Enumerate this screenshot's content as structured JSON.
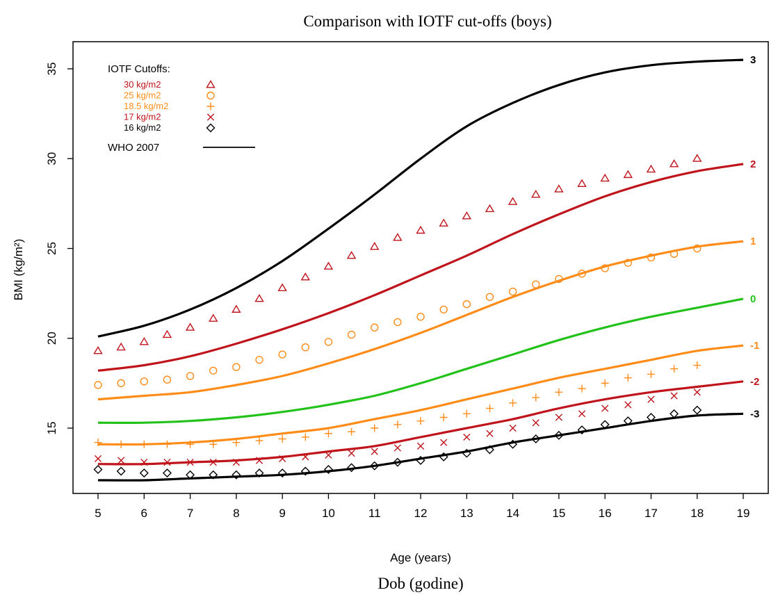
{
  "chart_data": {
    "type": "line",
    "title": "Comparison with IOTF cut-offs (boys)",
    "xlabel": "Age (years)",
    "xlabel_secondary": "Dob (godine)",
    "ylabel": "BMI (kg/m²)",
    "xlim": [
      5,
      19
    ],
    "ylim": [
      11.5,
      36.5
    ],
    "x_ticks": [
      "5",
      "6",
      "7",
      "8",
      "9",
      "10",
      "11",
      "12",
      "13",
      "14",
      "15",
      "16",
      "17",
      "18",
      "19"
    ],
    "y_ticks": [
      "15",
      "20",
      "25",
      "30",
      "35"
    ],
    "grid": false,
    "legend": {
      "title": "IOTF Cutoffs:",
      "position": "top-left",
      "who_label": "WHO 2007"
    },
    "who_ages": [
      5,
      6,
      7,
      8,
      9,
      10,
      11,
      12,
      13,
      14,
      15,
      16,
      17,
      18,
      19
    ],
    "who_curves": [
      {
        "label": "3",
        "color": "#000000",
        "values": [
          20.1,
          20.7,
          21.6,
          22.8,
          24.3,
          26.1,
          28.0,
          30.0,
          31.8,
          33.1,
          34.1,
          34.8,
          35.2,
          35.4,
          35.5
        ]
      },
      {
        "label": "2",
        "color": "#c0141c",
        "values": [
          18.2,
          18.5,
          19.0,
          19.7,
          20.5,
          21.4,
          22.4,
          23.5,
          24.6,
          25.8,
          26.9,
          27.9,
          28.7,
          29.3,
          29.7
        ]
      },
      {
        "label": "1",
        "color": "#ff8c19",
        "values": [
          16.6,
          16.8,
          17.0,
          17.4,
          17.9,
          18.6,
          19.4,
          20.3,
          21.3,
          22.3,
          23.2,
          24.0,
          24.6,
          25.1,
          25.4
        ]
      },
      {
        "label": "0",
        "color": "#22c21a",
        "values": [
          15.3,
          15.3,
          15.4,
          15.6,
          15.9,
          16.3,
          16.8,
          17.5,
          18.3,
          19.1,
          19.9,
          20.6,
          21.2,
          21.7,
          22.2
        ]
      },
      {
        "label": "-1",
        "color": "#ff8c19",
        "values": [
          14.1,
          14.1,
          14.2,
          14.4,
          14.7,
          15.0,
          15.5,
          16.0,
          16.6,
          17.2,
          17.8,
          18.3,
          18.8,
          19.3,
          19.6
        ]
      },
      {
        "label": "-2",
        "color": "#c0141c",
        "values": [
          13.0,
          13.0,
          13.1,
          13.2,
          13.4,
          13.7,
          14.0,
          14.5,
          15.0,
          15.5,
          16.1,
          16.6,
          17.0,
          17.3,
          17.6
        ]
      },
      {
        "label": "-3",
        "color": "#000000",
        "values": [
          12.1,
          12.1,
          12.2,
          12.3,
          12.4,
          12.6,
          12.9,
          13.3,
          13.7,
          14.2,
          14.6,
          15.0,
          15.4,
          15.7,
          15.8
        ]
      }
    ],
    "iotf_ages": [
      5,
      5.5,
      6,
      6.5,
      7,
      7.5,
      8,
      8.5,
      9,
      9.5,
      10,
      10.5,
      11,
      11.5,
      12,
      12.5,
      13,
      13.5,
      14,
      14.5,
      15,
      15.5,
      16,
      16.5,
      17,
      17.5,
      18
    ],
    "iotf_series": [
      {
        "name": "30 kg/m2",
        "color": "#c0141c",
        "marker": "triangle",
        "values": [
          19.3,
          19.5,
          19.8,
          20.2,
          20.6,
          21.1,
          21.6,
          22.2,
          22.8,
          23.4,
          24.0,
          24.6,
          25.1,
          25.6,
          26.0,
          26.4,
          26.8,
          27.2,
          27.6,
          28.0,
          28.3,
          28.6,
          28.9,
          29.1,
          29.4,
          29.7,
          30.0
        ]
      },
      {
        "name": "25 kg/m2",
        "color": "#ff8c19",
        "marker": "circle",
        "values": [
          17.4,
          17.5,
          17.6,
          17.7,
          17.9,
          18.2,
          18.4,
          18.8,
          19.1,
          19.5,
          19.8,
          20.2,
          20.6,
          20.9,
          21.2,
          21.6,
          21.9,
          22.3,
          22.6,
          23.0,
          23.3,
          23.6,
          23.9,
          24.2,
          24.5,
          24.7,
          25.0
        ]
      },
      {
        "name": "18.5 kg/m2",
        "color": "#ff8c19",
        "marker": "plus",
        "values": [
          14.2,
          14.1,
          14.1,
          14.1,
          14.1,
          14.1,
          14.2,
          14.3,
          14.4,
          14.5,
          14.7,
          14.8,
          15.0,
          15.2,
          15.4,
          15.6,
          15.8,
          16.1,
          16.4,
          16.7,
          17.0,
          17.2,
          17.5,
          17.8,
          18.0,
          18.3,
          18.5
        ]
      },
      {
        "name": "17 kg/m2",
        "color": "#c0141c",
        "marker": "cross",
        "values": [
          13.3,
          13.2,
          13.1,
          13.1,
          13.1,
          13.1,
          13.1,
          13.2,
          13.3,
          13.4,
          13.5,
          13.6,
          13.7,
          13.9,
          14.0,
          14.2,
          14.5,
          14.7,
          15.0,
          15.3,
          15.6,
          15.8,
          16.1,
          16.3,
          16.6,
          16.8,
          17.0
        ]
      },
      {
        "name": "16 kg/m2",
        "color": "#000000",
        "marker": "diamond",
        "values": [
          12.7,
          12.6,
          12.5,
          12.5,
          12.4,
          12.4,
          12.4,
          12.5,
          12.5,
          12.6,
          12.7,
          12.8,
          12.9,
          13.1,
          13.2,
          13.4,
          13.6,
          13.8,
          14.1,
          14.4,
          14.6,
          14.9,
          15.2,
          15.4,
          15.6,
          15.8,
          16.0
        ]
      }
    ]
  }
}
